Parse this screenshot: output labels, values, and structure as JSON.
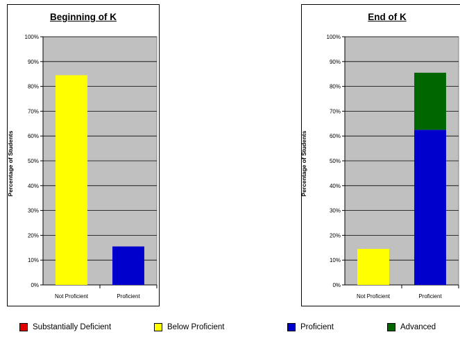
{
  "chart_data": [
    {
      "type": "bar",
      "title": "Beginning of K",
      "ylabel": "Percentage of Students",
      "ylim": [
        0,
        100
      ],
      "y_ticks": [
        "0%",
        "10%",
        "20%",
        "30%",
        "40%",
        "50%",
        "60%",
        "70%",
        "80%",
        "90%",
        "100%"
      ],
      "categories": [
        "Not Proficient",
        "Proficient"
      ],
      "series": [
        {
          "name": "Substantially Deficient",
          "color": "#e00000",
          "values": [
            0,
            0
          ]
        },
        {
          "name": "Below Proficient",
          "color": "#ffff00",
          "values": [
            84.5,
            0
          ]
        },
        {
          "name": "Proficient",
          "color": "#0000cc",
          "values": [
            0,
            15.5
          ]
        },
        {
          "name": "Advanced",
          "color": "#006600",
          "values": [
            0,
            0
          ]
        }
      ],
      "grid": true,
      "plot_background": "#c0c0c0"
    },
    {
      "type": "bar",
      "stacked": true,
      "title": "End of K",
      "ylabel": "Percentage of Students",
      "ylim": [
        0,
        100
      ],
      "y_ticks": [
        "0%",
        "10%",
        "20%",
        "30%",
        "40%",
        "50%",
        "60%",
        "70%",
        "80%",
        "90%",
        "100%"
      ],
      "categories": [
        "Not Proficient",
        "Proficient"
      ],
      "series": [
        {
          "name": "Substantially Deficient",
          "color": "#e00000",
          "values": [
            0,
            0
          ]
        },
        {
          "name": "Below Proficient",
          "color": "#ffff00",
          "values": [
            14.5,
            0
          ]
        },
        {
          "name": "Proficient",
          "color": "#0000cc",
          "values": [
            0,
            62.5
          ]
        },
        {
          "name": "Advanced",
          "color": "#006600",
          "values": [
            0,
            23
          ]
        }
      ],
      "grid": true,
      "plot_background": "#c0c0c0"
    }
  ],
  "legend": [
    {
      "label": "Substantially Deficient",
      "color": "#e00000"
    },
    {
      "label": "Below Proficient",
      "color": "#ffff00"
    },
    {
      "label": "Proficient",
      "color": "#0000cc"
    },
    {
      "label": "Advanced",
      "color": "#006600"
    }
  ]
}
